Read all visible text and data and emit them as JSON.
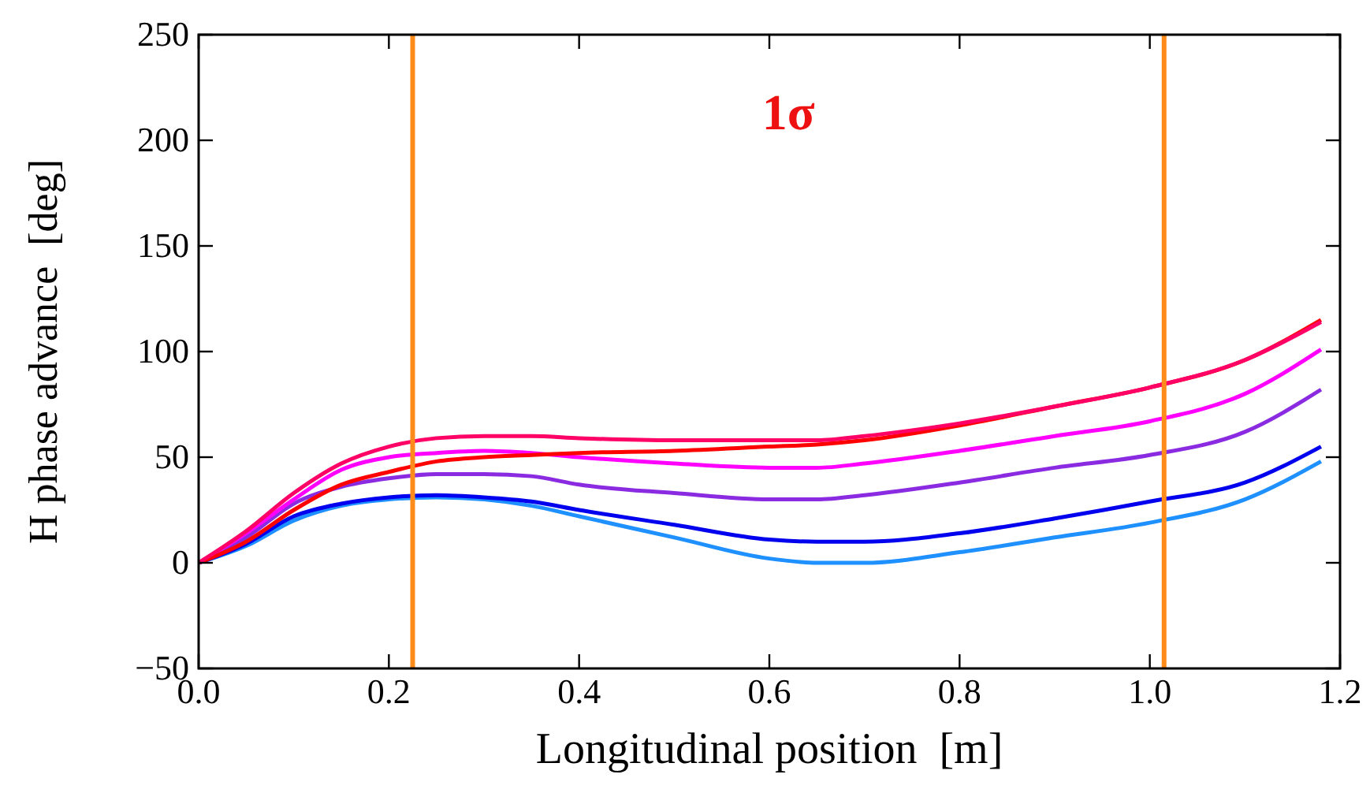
{
  "chart_data": {
    "type": "line",
    "xlabel": "Longitudinal position  [m]",
    "ylabel": "H phase advance  [deg]",
    "annotations": [
      "1σ"
    ],
    "x": [
      0,
      0.05,
      0.1,
      0.15,
      0.2,
      0.25,
      0.3,
      0.35,
      0.4,
      0.5,
      0.6,
      0.65,
      0.7,
      0.8,
      0.9,
      1.0,
      1.1,
      1.18
    ],
    "series": [
      {
        "color": "#1e90ff",
        "values": [
          0,
          8,
          20,
          27,
          30,
          31,
          30,
          27,
          22,
          12,
          2,
          0,
          0,
          5,
          12,
          19,
          30,
          48
        ]
      },
      {
        "color": "#0000ee",
        "values": [
          0,
          9,
          22,
          28,
          31,
          32,
          31,
          29,
          25,
          18,
          11,
          10,
          10,
          14,
          21,
          29,
          38,
          55
        ]
      },
      {
        "color": "#8a2be2",
        "values": [
          0,
          12,
          28,
          36,
          40,
          42,
          42,
          41,
          37,
          33,
          30,
          30,
          32,
          38,
          45,
          51,
          62,
          82
        ]
      },
      {
        "color": "#ff00ff",
        "values": [
          0,
          14,
          30,
          44,
          50,
          52,
          53,
          52,
          50,
          47,
          45,
          45,
          47,
          53,
          60,
          67,
          80,
          101
        ]
      },
      {
        "color": "#ff0000",
        "values": [
          0,
          10,
          25,
          37,
          43,
          48,
          50,
          51,
          52,
          53,
          55,
          56,
          58,
          65,
          74,
          83,
          96,
          115
        ]
      },
      {
        "color": "#ff0066",
        "values": [
          0,
          15,
          33,
          47,
          55,
          59,
          60,
          60,
          59,
          58,
          58,
          58,
          60,
          66,
          74,
          83,
          96,
          114
        ]
      }
    ],
    "xlim": [
      0,
      1.2
    ],
    "ylim": [
      -50,
      250
    ],
    "xticks": [
      {
        "value": 0,
        "label": "0.0"
      },
      {
        "value": 0.2,
        "label": "0.2"
      },
      {
        "value": 0.4,
        "label": "0.4"
      },
      {
        "value": 0.6,
        "label": "0.6"
      },
      {
        "value": 0.8,
        "label": "0.8"
      },
      {
        "value": 1.0,
        "label": "1.0"
      },
      {
        "value": 1.2,
        "label": "1.2"
      }
    ],
    "yticks": [
      -50,
      0,
      50,
      100,
      150,
      200,
      250
    ],
    "ref_lines": [
      {
        "axis": "x",
        "value": 0.225,
        "color": "#ff8c1a"
      },
      {
        "axis": "x",
        "value": 1.015,
        "color": "#ff8c1a"
      }
    ],
    "grid": false,
    "marker": "none",
    "line_style": "solid"
  }
}
